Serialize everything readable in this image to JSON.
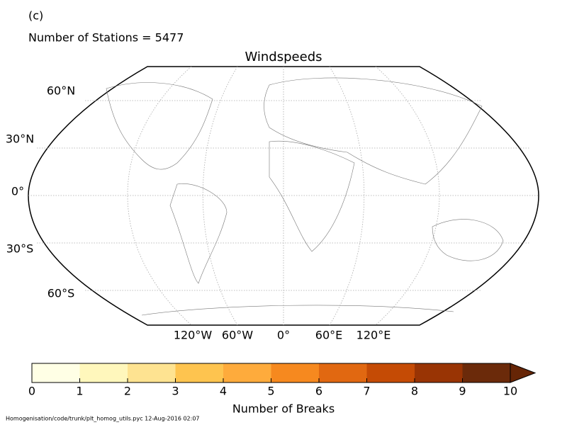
{
  "panel_label": "(c)",
  "subtitle": "Number of Stations = 5477",
  "map": {
    "title": "Windspeeds",
    "lat_labels": [
      "60°N",
      "30°N",
      "0°",
      "30°S",
      "60°S"
    ],
    "lon_labels": [
      "120°W",
      "60°W",
      "0°",
      "60°E",
      "120°E"
    ]
  },
  "colorbar": {
    "label": "Number of Breaks",
    "ticks": [
      0,
      1,
      2,
      3,
      4,
      5,
      6,
      7,
      8,
      9,
      10
    ],
    "colors": [
      "#ffffe5",
      "#fff7bc",
      "#fee391",
      "#fec44f",
      "#feab3c",
      "#f6891f",
      "#e16811",
      "#c54b05",
      "#993404",
      "#6b2a0a",
      "#662506"
    ],
    "extend": "max"
  },
  "footer": "Homogenisation/code/trunk/plt_homog_utils.pyc   12-Aug-2016 02:07"
}
